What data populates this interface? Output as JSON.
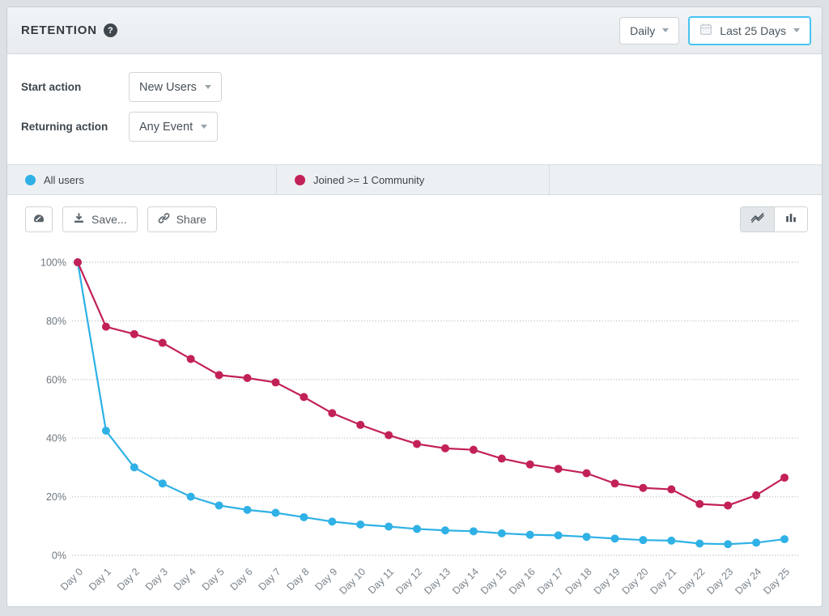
{
  "header": {
    "title": "RETENTION",
    "help_icon": "?",
    "interval_dropdown": {
      "value": "Daily"
    },
    "date_range_dropdown": {
      "value": "Last 25 Days",
      "icon": "calendar",
      "highlight_color": "#49c3f2"
    }
  },
  "filters": {
    "rows": [
      {
        "label": "Start action",
        "value": "New Users"
      },
      {
        "label": "Returning action",
        "value": "Any Event"
      }
    ]
  },
  "legend": {
    "items": [
      {
        "label": "All users",
        "color": "#2fb1e5"
      },
      {
        "label": "Joined >= 1 Community",
        "color": "#c22158"
      }
    ]
  },
  "toolbar": {
    "dashboard_icon": "gauge",
    "save_label": "Save...",
    "share_label": "Share",
    "chart_type_toggle": {
      "options": [
        "line",
        "bar"
      ],
      "selected": "line"
    }
  },
  "chart_data": {
    "type": "line",
    "title": "",
    "xlabel": "",
    "ylabel": "",
    "ylim": [
      0,
      100
    ],
    "grid": "dotted-horizontal",
    "y_ticks": [
      0,
      20,
      40,
      60,
      80,
      100
    ],
    "y_tick_labels": [
      "0%",
      "20%",
      "40%",
      "60%",
      "80%",
      "100%"
    ],
    "categories": [
      "Day 0",
      "Day 1",
      "Day 2",
      "Day 3",
      "Day 4",
      "Day 5",
      "Day 6",
      "Day 7",
      "Day 8",
      "Day 9",
      "Day 10",
      "Day 11",
      "Day 12",
      "Day 13",
      "Day 14",
      "Day 15",
      "Day 16",
      "Day 17",
      "Day 18",
      "Day 19",
      "Day 20",
      "Day 21",
      "Day 22",
      "Day 23",
      "Day 24",
      "Day 25"
    ],
    "series": [
      {
        "name": "All users",
        "color": "#2fb1e5",
        "values": [
          100,
          42.5,
          30,
          24.5,
          20,
          17,
          15.5,
          14.5,
          13,
          11.5,
          10.5,
          9.8,
          9,
          8.5,
          8.2,
          7.5,
          7,
          6.8,
          6.3,
          5.7,
          5.2,
          5,
          4,
          3.8,
          4.3,
          5.5
        ]
      },
      {
        "name": "Joined >= 1 Community",
        "color": "#c22158",
        "values": [
          100,
          78,
          75.5,
          72.5,
          67,
          61.5,
          60.5,
          59,
          54,
          48.5,
          44.5,
          41,
          38,
          36.5,
          36,
          33,
          31,
          29.5,
          28,
          24.5,
          23,
          22.5,
          17.5,
          17,
          20.5,
          26.5
        ]
      }
    ]
  }
}
